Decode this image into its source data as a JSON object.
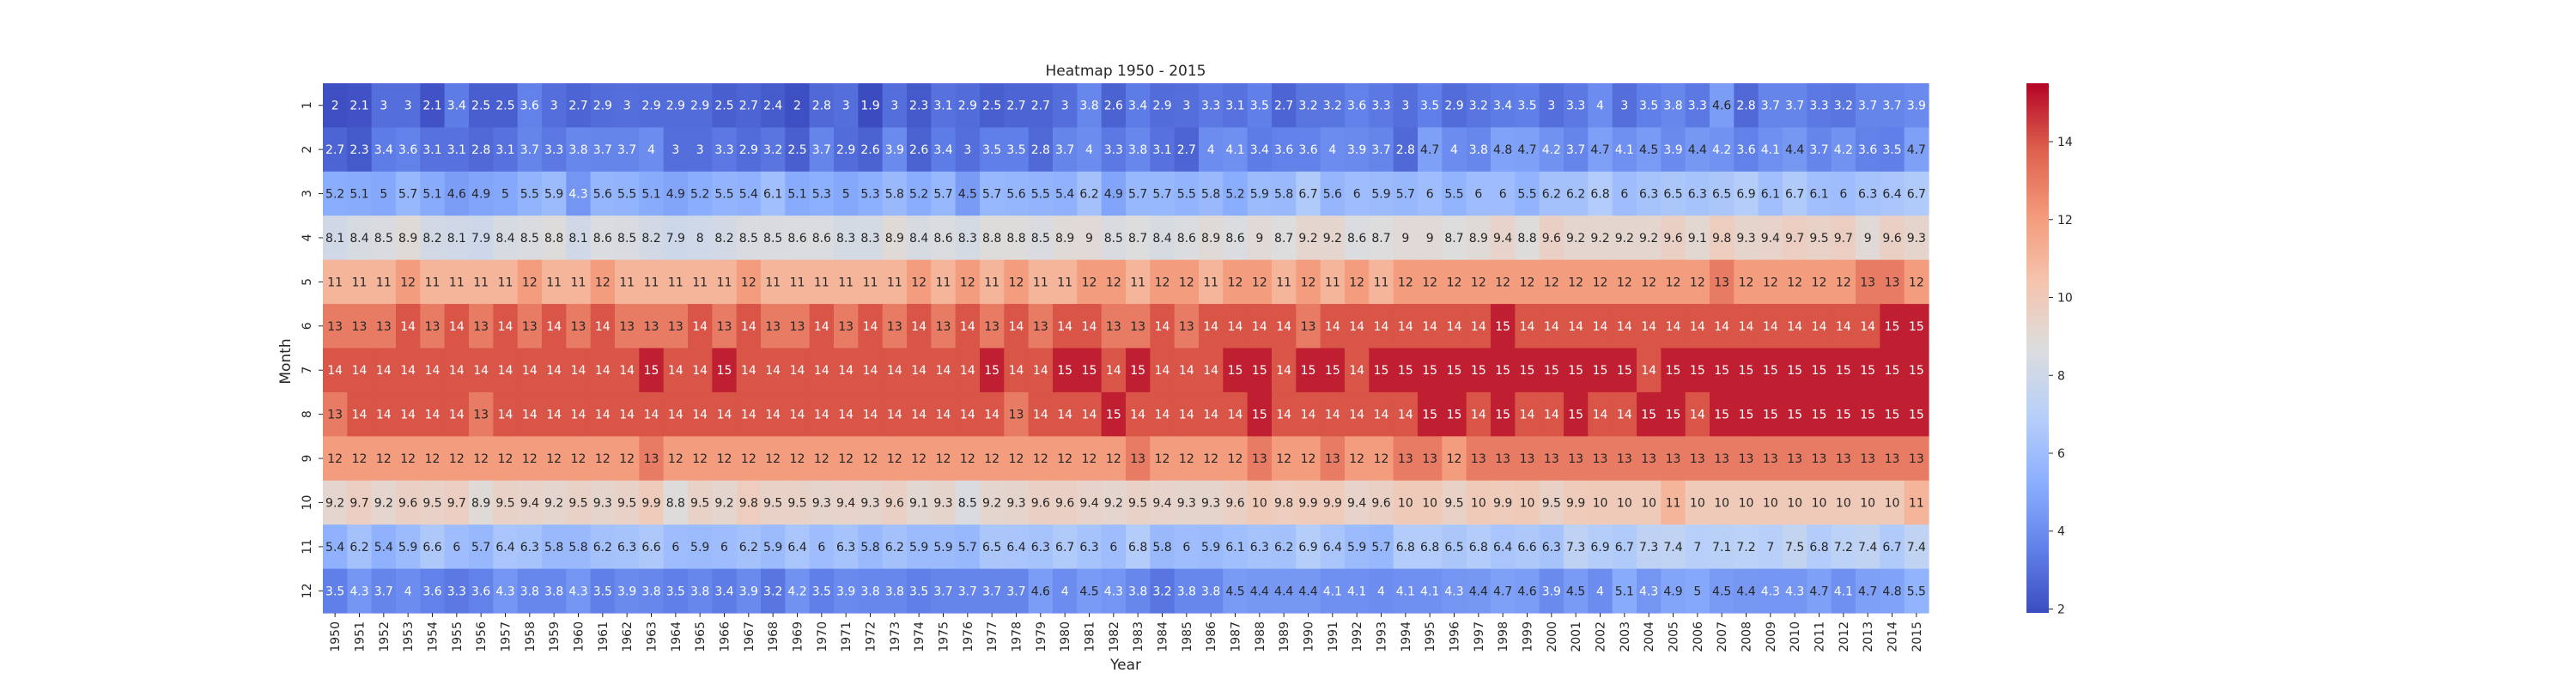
{
  "chart_data": {
    "type": "heatmap",
    "title": "Heatmap 1950 - 2015",
    "xlabel": "Year",
    "ylabel": "Month",
    "x": [
      "1950",
      "1951",
      "1952",
      "1953",
      "1954",
      "1955",
      "1956",
      "1957",
      "1958",
      "1959",
      "1960",
      "1961",
      "1962",
      "1963",
      "1964",
      "1965",
      "1966",
      "1967",
      "1968",
      "1969",
      "1970",
      "1971",
      "1972",
      "1973",
      "1974",
      "1975",
      "1976",
      "1977",
      "1978",
      "1979",
      "1980",
      "1981",
      "1982",
      "1983",
      "1984",
      "1985",
      "1986",
      "1987",
      "1988",
      "1989",
      "1990",
      "1991",
      "1992",
      "1993",
      "1994",
      "1995",
      "1996",
      "1997",
      "1998",
      "1999",
      "2000",
      "2001",
      "2002",
      "2003",
      "2004",
      "2005",
      "2006",
      "2007",
      "2008",
      "2009",
      "2010",
      "2011",
      "2012",
      "2013",
      "2014",
      "2015"
    ],
    "y": [
      "1",
      "2",
      "3",
      "4",
      "5",
      "6",
      "7",
      "8",
      "9",
      "10",
      "11",
      "12"
    ],
    "values": [
      [
        2,
        2.1,
        3,
        3,
        2.1,
        3.4,
        2.5,
        2.5,
        3.6,
        3,
        2.7,
        2.9,
        3,
        2.9,
        2.9,
        2.9,
        2.5,
        2.7,
        2.4,
        2,
        2.8,
        3,
        1.9,
        3,
        2.3,
        3.1,
        2.9,
        2.5,
        2.7,
        2.7,
        3,
        3.8,
        2.6,
        3.4,
        2.9,
        3,
        3.3,
        3.1,
        3.5,
        2.7,
        3.2,
        3.2,
        3.6,
        3.3,
        3,
        3.5,
        2.9,
        3.2,
        3.4,
        3.5,
        3,
        3.3,
        4,
        3,
        3.5,
        3.8,
        3.3,
        4.6,
        2.8,
        3.7,
        3.7,
        3.3,
        3.2,
        3.7,
        3.7,
        3.9
      ],
      [
        2.7,
        2.3,
        3.4,
        3.6,
        3.1,
        3.1,
        2.8,
        3.1,
        3.7,
        3.3,
        3.8,
        3.7,
        3.7,
        4,
        3,
        3,
        3.3,
        2.9,
        3.2,
        2.5,
        3.7,
        2.9,
        2.6,
        3.9,
        2.6,
        3.4,
        3,
        3.5,
        3.5,
        2.8,
        3.7,
        4,
        3.3,
        3.8,
        3.1,
        2.7,
        4,
        4.1,
        3.4,
        3.6,
        3.6,
        4,
        3.9,
        3.7,
        2.8,
        4.7,
        4,
        3.8,
        4.8,
        4.7,
        4.2,
        3.7,
        4.7,
        4.1,
        4.5,
        3.9,
        4.4,
        4.2,
        3.6,
        4.1,
        4.4,
        3.7,
        4.2,
        3.6,
        3.5,
        4.7
      ],
      [
        5.2,
        5.1,
        5,
        5.7,
        5.1,
        4.6,
        4.9,
        5,
        5.5,
        5.9,
        4.3,
        5.6,
        5.5,
        5.1,
        4.9,
        5.2,
        5.5,
        5.4,
        6.1,
        5.1,
        5.3,
        5,
        5.3,
        5.8,
        5.2,
        5.7,
        4.5,
        5.7,
        5.6,
        5.5,
        5.4,
        6.2,
        4.9,
        5.7,
        5.7,
        5.5,
        5.8,
        5.2,
        5.9,
        5.8,
        6.7,
        5.6,
        6,
        5.9,
        5.7,
        6,
        5.5,
        6,
        6,
        5.5,
        6.2,
        6.2,
        6.8,
        6,
        6.3,
        6.5,
        6.3,
        6.5,
        6.9,
        6.1,
        6.7,
        6.1,
        6,
        6.3,
        6.4,
        6.7
      ],
      [
        8.1,
        8.4,
        8.5,
        8.9,
        8.2,
        8.1,
        7.9,
        8.4,
        8.5,
        8.8,
        8.1,
        8.6,
        8.5,
        8.2,
        7.9,
        8,
        8.2,
        8.5,
        8.5,
        8.6,
        8.6,
        8.3,
        8.3,
        8.9,
        8.4,
        8.6,
        8.3,
        8.8,
        8.8,
        8.5,
        8.9,
        9,
        8.5,
        8.7,
        8.4,
        8.6,
        8.9,
        8.6,
        9,
        8.7,
        9.2,
        9.2,
        8.6,
        8.7,
        9,
        9,
        8.7,
        8.9,
        9.4,
        8.8,
        9.6,
        9.2,
        9.2,
        9.2,
        9.2,
        9.6,
        9.1,
        9.8,
        9.3,
        9.4,
        9.7,
        9.5,
        9.7,
        9,
        9.6,
        9.3
      ],
      [
        11,
        11,
        11,
        12,
        11,
        11,
        11,
        11,
        12,
        11,
        11,
        12,
        11,
        11,
        11,
        11,
        11,
        12,
        11,
        11,
        11,
        11,
        11,
        11,
        12,
        11,
        12,
        11,
        12,
        11,
        11,
        12,
        12,
        11,
        12,
        12,
        11,
        12,
        12,
        11,
        12,
        11,
        12,
        11,
        12,
        12,
        12,
        12,
        12,
        12,
        12,
        12,
        12,
        12,
        12,
        12,
        12,
        13,
        12,
        12,
        12,
        12,
        12,
        13,
        13,
        12
      ],
      [
        13,
        13,
        13,
        14,
        13,
        14,
        13,
        14,
        13,
        14,
        13,
        14,
        13,
        13,
        13,
        14,
        13,
        14,
        13,
        13,
        14,
        13,
        14,
        13,
        14,
        13,
        14,
        13,
        14,
        13,
        14,
        14,
        13,
        13,
        14,
        13,
        14,
        14,
        14,
        14,
        13,
        14,
        14,
        14,
        14,
        14,
        14,
        14,
        15,
        14,
        14,
        14,
        14,
        14,
        14,
        14,
        14,
        14,
        14,
        14,
        14,
        14,
        14,
        14,
        15,
        15
      ],
      [
        14,
        14,
        14,
        14,
        14,
        14,
        14,
        14,
        14,
        14,
        14,
        14,
        14,
        15,
        14,
        14,
        15,
        14,
        14,
        14,
        14,
        14,
        14,
        14,
        14,
        14,
        14,
        15,
        14,
        14,
        15,
        15,
        14,
        15,
        14,
        14,
        14,
        15,
        15,
        14,
        15,
        15,
        14,
        15,
        15,
        15,
        15,
        15,
        15,
        15,
        15,
        15,
        15,
        15,
        14,
        15,
        15,
        15,
        15,
        15,
        15,
        15,
        15,
        15,
        15,
        15
      ],
      [
        13,
        14,
        14,
        14,
        14,
        14,
        13,
        14,
        14,
        14,
        14,
        14,
        14,
        14,
        14,
        14,
        14,
        14,
        14,
        14,
        14,
        14,
        14,
        14,
        14,
        14,
        14,
        14,
        13,
        14,
        14,
        14,
        15,
        14,
        14,
        14,
        14,
        14,
        15,
        14,
        14,
        14,
        14,
        14,
        14,
        15,
        15,
        14,
        15,
        14,
        14,
        15,
        14,
        14,
        15,
        15,
        14,
        15,
        15,
        15,
        15,
        15,
        15,
        15,
        15,
        15
      ],
      [
        12,
        12,
        12,
        12,
        12,
        12,
        12,
        12,
        12,
        12,
        12,
        12,
        12,
        13,
        12,
        12,
        12,
        12,
        12,
        12,
        12,
        12,
        12,
        12,
        12,
        12,
        12,
        12,
        12,
        12,
        12,
        12,
        12,
        13,
        12,
        12,
        12,
        12,
        13,
        12,
        12,
        13,
        12,
        12,
        13,
        13,
        12,
        13,
        13,
        13,
        13,
        13,
        13,
        13,
        13,
        13,
        13,
        13,
        13,
        13,
        13,
        13,
        13,
        13,
        13,
        13
      ],
      [
        9.2,
        9.7,
        9.2,
        9.6,
        9.5,
        9.7,
        8.9,
        9.5,
        9.4,
        9.2,
        9.5,
        9.3,
        9.5,
        9.9,
        8.8,
        9.5,
        9.2,
        9.8,
        9.5,
        9.5,
        9.3,
        9.4,
        9.3,
        9.6,
        9.1,
        9.3,
        8.5,
        9.2,
        9.3,
        9.6,
        9.6,
        9.4,
        9.2,
        9.5,
        9.4,
        9.3,
        9.3,
        9.6,
        10,
        9.8,
        9.9,
        9.9,
        9.4,
        9.6,
        10,
        10,
        9.5,
        10,
        9.9,
        10,
        9.5,
        9.9,
        10,
        10,
        10,
        11,
        10,
        10,
        10,
        10,
        10,
        10,
        10,
        10,
        10,
        11
      ],
      [
        5.4,
        6.2,
        5.4,
        5.9,
        6.6,
        6,
        5.7,
        6.4,
        6.3,
        5.8,
        5.8,
        6.2,
        6.3,
        6.6,
        6,
        5.9,
        6,
        6.2,
        5.9,
        6.4,
        6,
        6.3,
        5.8,
        6.2,
        5.9,
        5.9,
        5.7,
        6.5,
        6.4,
        6.3,
        6.7,
        6.3,
        6,
        6.8,
        5.8,
        6,
        5.9,
        6.1,
        6.3,
        6.2,
        6.9,
        6.4,
        5.9,
        5.7,
        6.8,
        6.8,
        6.5,
        6.8,
        6.4,
        6.6,
        6.3,
        7.3,
        6.9,
        6.7,
        7.3,
        7.4,
        7,
        7.1,
        7.2,
        7,
        7.5,
        6.8,
        7.2,
        7.4,
        6.7,
        7.4
      ],
      [
        3.5,
        4.3,
        3.7,
        4,
        3.6,
        3.3,
        3.6,
        4.3,
        3.8,
        3.8,
        4.3,
        3.5,
        3.9,
        3.8,
        3.5,
        3.8,
        3.4,
        3.9,
        3.2,
        4.2,
        3.5,
        3.9,
        3.8,
        3.8,
        3.5,
        3.7,
        3.7,
        3.7,
        3.7,
        4.6,
        4,
        4.5,
        4.3,
        3.8,
        3.2,
        3.8,
        3.8,
        4.5,
        4.4,
        4.4,
        4.4,
        4.1,
        4.1,
        4,
        4.1,
        4.1,
        4.3,
        4.4,
        4.7,
        4.6,
        3.9,
        4.5,
        4,
        5.1,
        4.3,
        4.9,
        5,
        4.5,
        4.4,
        4.3,
        4.3,
        4.7,
        4.1,
        4.7,
        4.8,
        5.5
      ]
    ],
    "colorbar": {
      "colormap": "coolwarm",
      "min": 1.9,
      "max": 15.5,
      "ticks": [
        "2",
        "4",
        "6",
        "8",
        "10",
        "12",
        "14"
      ]
    },
    "colors": {
      "cool": "#3b4cc0",
      "mid": "#dddddd",
      "warm": "#b40426"
    },
    "grid": false
  }
}
